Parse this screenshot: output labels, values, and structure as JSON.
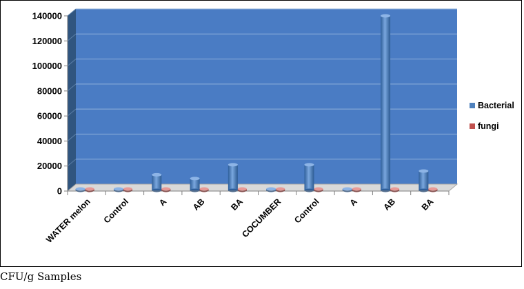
{
  "chart_data": {
    "type": "bar",
    "categories": [
      "WATER melon",
      "Control",
      "A",
      "AB",
      "BA",
      "COCUMBER",
      "Control",
      "A",
      "AB",
      "BA"
    ],
    "series": [
      {
        "name": "Bacterial",
        "values": [
          300,
          800,
          13000,
          10000,
          21000,
          200,
          21000,
          1500,
          140000,
          16000
        ]
      },
      {
        "name": "fungi",
        "values": [
          150,
          100,
          100,
          100,
          100,
          150,
          0,
          0,
          0,
          0
        ]
      }
    ],
    "y_ticks": [
      "0",
      "20000",
      "40000",
      "60000",
      "80000",
      "100000",
      "120000",
      "140000"
    ],
    "ylim": [
      0,
      140000
    ],
    "legend_position": "right",
    "grid": true,
    "colors": {
      "plot_background": "#4a7cc4",
      "bacterial": "#4f81bd",
      "fungi": "#c0504d",
      "side_wall": "#30557f"
    }
  },
  "caption": "CFU/g Samples"
}
